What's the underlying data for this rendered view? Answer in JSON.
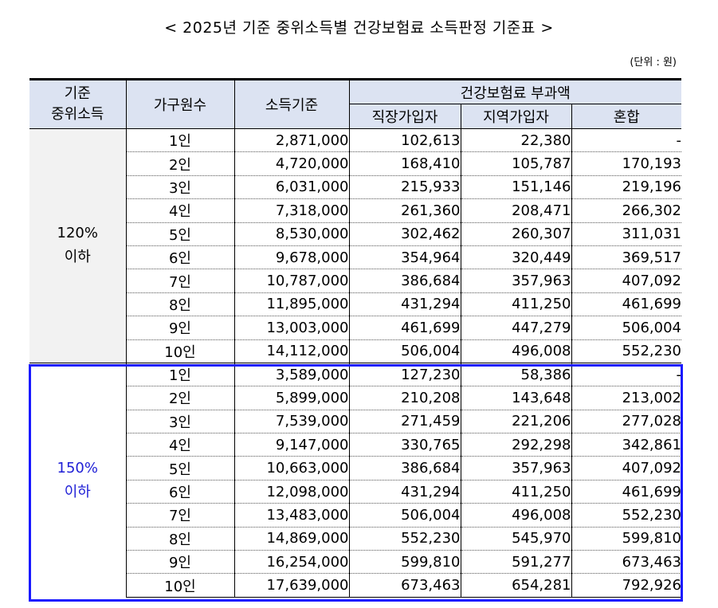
{
  "title": "< 2025년 기준 중위소득별 건강보험료 소득판정 기준표 >",
  "unit": "(단위 : 원)",
  "headers": {
    "median_income": "기준\n중위소득",
    "household": "가구원수",
    "income_std": "소득기준",
    "premium": "건강보험료 부과액",
    "workplace": "직장가입자",
    "regional": "지역가입자",
    "mixed": "혼합"
  },
  "groups": [
    {
      "label": "120%\n이하",
      "rows": [
        {
          "hh": "1인",
          "income": "2,871,000",
          "work": "102,613",
          "region": "22,380",
          "mixed": "-"
        },
        {
          "hh": "2인",
          "income": "4,720,000",
          "work": "168,410",
          "region": "105,787",
          "mixed": "170,193"
        },
        {
          "hh": "3인",
          "income": "6,031,000",
          "work": "215,933",
          "region": "151,146",
          "mixed": "219,196"
        },
        {
          "hh": "4인",
          "income": "7,318,000",
          "work": "261,360",
          "region": "208,471",
          "mixed": "266,302"
        },
        {
          "hh": "5인",
          "income": "8,530,000",
          "work": "302,462",
          "region": "260,307",
          "mixed": "311,031"
        },
        {
          "hh": "6인",
          "income": "9,678,000",
          "work": "354,964",
          "region": "320,449",
          "mixed": "369,517"
        },
        {
          "hh": "7인",
          "income": "10,787,000",
          "work": "386,684",
          "region": "357,963",
          "mixed": "407,092"
        },
        {
          "hh": "8인",
          "income": "11,895,000",
          "work": "431,294",
          "region": "411,250",
          "mixed": "461,699"
        },
        {
          "hh": "9인",
          "income": "13,003,000",
          "work": "461,699",
          "region": "447,279",
          "mixed": "506,004"
        },
        {
          "hh": "10인",
          "income": "14,112,000",
          "work": "506,004",
          "region": "496,008",
          "mixed": "552,230"
        }
      ]
    },
    {
      "label": "150%\n이하",
      "rows": [
        {
          "hh": "1인",
          "income": "3,589,000",
          "work": "127,230",
          "region": "58,386",
          "mixed": "-"
        },
        {
          "hh": "2인",
          "income": "5,899,000",
          "work": "210,208",
          "region": "143,648",
          "mixed": "213,002"
        },
        {
          "hh": "3인",
          "income": "7,539,000",
          "work": "271,459",
          "region": "221,206",
          "mixed": "277,028"
        },
        {
          "hh": "4인",
          "income": "9,147,000",
          "work": "330,765",
          "region": "292,298",
          "mixed": "342,861"
        },
        {
          "hh": "5인",
          "income": "10,663,000",
          "work": "386,684",
          "region": "357,963",
          "mixed": "407,092"
        },
        {
          "hh": "6인",
          "income": "12,098,000",
          "work": "431,294",
          "region": "411,250",
          "mixed": "461,699"
        },
        {
          "hh": "7인",
          "income": "13,483,000",
          "work": "506,004",
          "region": "496,008",
          "mixed": "552,230"
        },
        {
          "hh": "8인",
          "income": "14,869,000",
          "work": "552,230",
          "region": "545,970",
          "mixed": "599,810"
        },
        {
          "hh": "9인",
          "income": "16,254,000",
          "work": "599,810",
          "region": "591,277",
          "mixed": "673,463"
        },
        {
          "hh": "10인",
          "income": "17,639,000",
          "work": "673,463",
          "region": "654,281",
          "mixed": "792,926"
        }
      ]
    }
  ],
  "colors": {
    "highlight_border": "#1a1aff",
    "highlight_text": "#1f1fd6",
    "header_bg": "#dce3f2",
    "group_bg": "#f2f2f2"
  }
}
